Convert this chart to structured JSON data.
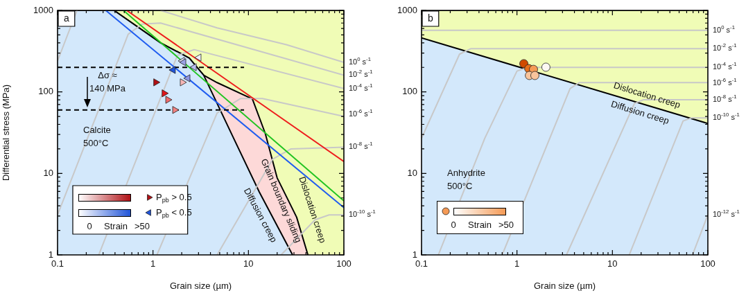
{
  "chart_data": [
    {
      "type": "line",
      "title": "a",
      "xlabel": "Grain size (µm)",
      "ylabel": "Differential stress (MPa)",
      "log": "xy",
      "xlim": [
        0.1,
        100
      ],
      "ylim": [
        1,
        1000
      ],
      "xticks": [
        0.1,
        {
          "value": 0.2,
          "label": null
        },
        {
          "value": 0.3,
          "label": null
        },
        {
          "value": 0.4,
          "label": null
        },
        {
          "value": 0.5,
          "label": null
        },
        {
          "value": 0.6,
          "label": null
        },
        {
          "value": 0.7,
          "label": null
        },
        {
          "value": 0.8,
          "label": null
        },
        {
          "value": 0.9,
          "label": null
        },
        1,
        {
          "value": 2,
          "label": null
        },
        {
          "value": 3,
          "label": null
        },
        {
          "value": 4,
          "label": null
        },
        {
          "value": 5,
          "label": null
        },
        {
          "value": 6,
          "label": null
        },
        {
          "value": 7,
          "label": null
        },
        {
          "value": 8,
          "label": null
        },
        {
          "value": 9,
          "label": null
        },
        10,
        {
          "value": 20,
          "label": null
        },
        {
          "value": 30,
          "label": null
        },
        {
          "value": 40,
          "label": null
        },
        {
          "value": 50,
          "label": null
        },
        {
          "value": 60,
          "label": null
        },
        {
          "value": 70,
          "label": null
        },
        {
          "value": 80,
          "label": null
        },
        {
          "value": 90,
          "label": null
        },
        100
      ],
      "yticks": [
        1,
        {
          "value": 2,
          "label": null
        },
        {
          "value": 3,
          "label": null
        },
        {
          "value": 4,
          "label": null
        },
        {
          "value": 5,
          "label": null
        },
        {
          "value": 6,
          "label": null
        },
        {
          "value": 7,
          "label": null
        },
        {
          "value": 8,
          "label": null
        },
        {
          "value": 9,
          "label": null
        },
        10,
        {
          "value": 20,
          "label": null
        },
        {
          "value": 30,
          "label": null
        },
        {
          "value": 40,
          "label": null
        },
        {
          "value": 50,
          "label": null
        },
        {
          "value": 60,
          "label": null
        },
        {
          "value": 70,
          "label": null
        },
        {
          "value": 80,
          "label": null
        },
        {
          "value": 90,
          "label": null
        },
        100,
        {
          "value": 200,
          "label": null
        },
        {
          "value": 300,
          "label": null
        },
        {
          "value": 400,
          "label": null
        },
        {
          "value": 500,
          "label": null
        },
        {
          "value": 600,
          "label": null
        },
        {
          "value": 700,
          "label": null
        },
        {
          "value": 800,
          "label": null
        },
        {
          "value": 900,
          "label": null
        },
        1000
      ],
      "legend": "bottom left",
      "annotations": [
        "Δσ ≈\n140 MPa",
        "Calcite\n500°C",
        "Diffusion creep",
        "Grain boundary sliding",
        "Dislocation creep",
        "0",
        "Strain",
        ">50",
        "10$^{0}$ s$^{-1}$",
        "10$^{-2}$ s$^{-1}$",
        "10$^{-4}$ s$^{-1}$",
        "10$^{-6}$ s$^{-1}$",
        "10$^{-8}$ s$^{-1}$",
        "10$^{-10}$ s$^{-1}$"
      ],
      "series": [
        {
          "type": "scatter",
          "name": "P$_{pb}$ > 0.5",
          "color": "#b01015",
          "marker": "triangle",
          "x": [
            1.07,
            1.31,
            1.43,
            2.03,
            1.69
          ],
          "values": [
            131,
            96,
            80,
            131,
            60
          ],
          "colors": [
            "#b01015",
            "#e01418",
            "#ee6a6a",
            "#f6b6b6",
            "#f08080"
          ]
        },
        {
          "type": "scatter",
          "name": "P$_{pb}$ < 0.5",
          "color": "#2054d8",
          "marker": "triangle",
          "x": [
            3.03,
            2.03,
            2.1,
            2.7,
            1.63,
            2.32
          ],
          "values": [
            264,
            240,
            231,
            201,
            186,
            147
          ],
          "colors": [
            "#eeeef9",
            "#dcdcf4",
            "#9aa2e6",
            "#b9bcee",
            "#2054d8",
            "#8f96e2"
          ]
        },
        {
          "type": "line",
          "color": "#000000",
          "line_style": "dashed",
          "x": [
            0.1,
            9
          ],
          "values": [
            200,
            200
          ]
        },
        {
          "type": "line",
          "color": "#000000",
          "line_style": "dashed",
          "x": [
            0.1,
            9
          ],
          "values": [
            60,
            60
          ]
        },
        {
          "type": "line",
          "color": "#ee1c1c",
          "x": [
            0.53,
            100
          ],
          "values": [
            1000,
            14
          ]
        },
        {
          "type": "line",
          "color": "#22c422",
          "x": [
            0.49,
            100
          ],
          "values": [
            1000,
            4.6
          ]
        },
        {
          "type": "line",
          "color": "#1f5cf0",
          "x": [
            0.32,
            100
          ],
          "values": [
            1000,
            3.8
          ]
        },
        {
          "type": "line",
          "color": "#c8c8c8",
          "x": [
            0.1,
            0.16
          ],
          "values": [
            240,
            1000
          ]
        },
        {
          "type": "line",
          "color": "#c8c8c8",
          "x": [
            1.2,
            4.7,
            25,
            100
          ],
          "values": [
            1000,
            610,
            380,
            230
          ]
        },
        {
          "type": "line",
          "color": "#c8c8c8",
          "x": [
            0.1,
            0.55,
            0.77,
            1.2,
            100
          ],
          "values": [
            3.1,
            510,
            680,
            700,
            160
          ]
        },
        {
          "type": "line",
          "color": "#c8c8c8",
          "x": [
            0.27,
            1.8,
            2.7,
            100
          ],
          "values": [
            1,
            280,
            330,
            110
          ]
        },
        {
          "type": "line",
          "color": "#c8c8c8",
          "x": [
            1.1,
            4.7,
            8.3,
            14,
            100
          ],
          "values": [
            1,
            55,
            83,
            83,
            50
          ]
        },
        {
          "type": "line",
          "color": "#c8c8c8",
          "x": [
            4.7,
            18,
            28,
            100
          ],
          "values": [
            1,
            15,
            20,
            21
          ]
        },
        {
          "type": "line",
          "color": "#c8c8c8",
          "x": [
            22,
            50,
            70,
            100
          ],
          "values": [
            1,
            2.7,
            3.1,
            3.1
          ]
        },
        {
          "type": "area",
          "color": "#d3e8fb",
          "x": [
            0.1,
            0.39,
            1.2,
            2.4,
            3.4,
            7,
            13,
            29
          ],
          "values": [
            1000,
            1000,
            400,
            260,
            160,
            27,
            5.9,
            1
          ]
        },
        {
          "type": "area",
          "color": "#fdd9d8",
          "x": [
            0.1,
            0.39,
            1.2,
            2.4,
            3.4,
            4.7,
            11,
            15,
            20,
            32,
            42
          ],
          "values": [
            1000,
            1000,
            400,
            260,
            160,
            130,
            82,
            31,
            8.8,
            2.9,
            1
          ]
        },
        {
          "type": "area",
          "color": "#f0fcb6",
          "x": [
            0.1,
            100
          ],
          "values": [
            1000,
            1000
          ]
        }
      ]
    },
    {
      "type": "line",
      "title": "b",
      "xlabel": "Grain size (µm)",
      "log": "xy",
      "xlim": [
        0.1,
        100
      ],
      "ylim": [
        1,
        1000
      ],
      "xticks": [
        0.1,
        {
          "value": 0.2,
          "label": null
        },
        {
          "value": 0.3,
          "label": null
        },
        {
          "value": 0.4,
          "label": null
        },
        {
          "value": 0.5,
          "label": null
        },
        {
          "value": 0.6,
          "label": null
        },
        {
          "value": 0.7,
          "label": null
        },
        {
          "value": 0.8,
          "label": null
        },
        {
          "value": 0.9,
          "label": null
        },
        1,
        {
          "value": 2,
          "label": null
        },
        {
          "value": 3,
          "label": null
        },
        {
          "value": 4,
          "label": null
        },
        {
          "value": 5,
          "label": null
        },
        {
          "value": 6,
          "label": null
        },
        {
          "value": 7,
          "label": null
        },
        {
          "value": 8,
          "label": null
        },
        {
          "value": 9,
          "label": null
        },
        10,
        {
          "value": 20,
          "label": null
        },
        {
          "value": 30,
          "label": null
        },
        {
          "value": 40,
          "label": null
        },
        {
          "value": 50,
          "label": null
        },
        {
          "value": 60,
          "label": null
        },
        {
          "value": 70,
          "label": null
        },
        {
          "value": 80,
          "label": null
        },
        {
          "value": 90,
          "label": null
        },
        100
      ],
      "yticks": [
        1,
        {
          "value": 2,
          "label": null
        },
        {
          "value": 3,
          "label": null
        },
        {
          "value": 4,
          "label": null
        },
        {
          "value": 5,
          "label": null
        },
        {
          "value": 6,
          "label": null
        },
        {
          "value": 7,
          "label": null
        },
        {
          "value": 8,
          "label": null
        },
        {
          "value": 9,
          "label": null
        },
        10,
        {
          "value": 20,
          "label": null
        },
        {
          "value": 30,
          "label": null
        },
        {
          "value": 40,
          "label": null
        },
        {
          "value": 50,
          "label": null
        },
        {
          "value": 60,
          "label": null
        },
        {
          "value": 70,
          "label": null
        },
        {
          "value": 80,
          "label": null
        },
        {
          "value": 90,
          "label": null
        },
        100,
        {
          "value": 200,
          "label": null
        },
        {
          "value": 300,
          "label": null
        },
        {
          "value": 400,
          "label": null
        },
        {
          "value": 500,
          "label": null
        },
        {
          "value": 600,
          "label": null
        },
        {
          "value": 700,
          "label": null
        },
        {
          "value": 800,
          "label": null
        },
        {
          "value": 900,
          "label": null
        },
        1000
      ],
      "annotations": [
        "Anhydrite\n500°C",
        "Dislocation creep",
        "Diffusion creep",
        "0",
        "Strain",
        ">50",
        "10$^{0}$ s$^{-1}$",
        "10$^{-2}$ s$^{-1}$",
        "10$^{-4}$ s$^{-1}$",
        "10$^{-6}$ s$^{-1}$",
        "10$^{-8}$ s$^{-1}$",
        "10$^{-10}$ s$^{-1}$",
        "10$^{-12}$ s$^{-1}$"
      ],
      "series": [
        {
          "type": "scatter",
          "color": "#f59a55",
          "marker": "circle",
          "x": [
            1.18,
            1.33,
            1.49,
            1.35,
            1.54,
            2.01
          ],
          "values": [
            222,
            193,
            189,
            159,
            159,
            201
          ],
          "colors": [
            "#d04a00",
            "#e8701c",
            "#f59a55",
            "#f8c49c",
            "#f8c49c",
            "#fdf8f3"
          ]
        },
        {
          "type": "line",
          "color": "#c8c8c8",
          "x": [
            0.1,
            100
          ],
          "values": [
            570,
            570
          ]
        },
        {
          "type": "line",
          "color": "#c8c8c8",
          "x": [
            0.1,
            0.25,
            0.33,
            100
          ],
          "values": [
            27,
            290,
            340,
            340
          ]
        },
        {
          "type": "line",
          "color": "#c8c8c8",
          "x": [
            0.15,
            0.46,
            1.0,
            1.3,
            100
          ],
          "values": [
            1,
            27,
            180,
            200,
            200
          ]
        },
        {
          "type": "line",
          "color": "#c8c8c8",
          "x": [
            0.7,
            3.6,
            4.5,
            100
          ],
          "values": [
            1,
            110,
            130,
            130
          ]
        },
        {
          "type": "line",
          "color": "#c8c8c8",
          "x": [
            3.3,
            17,
            21,
            100
          ],
          "values": [
            1,
            72,
            80,
            80
          ]
        },
        {
          "type": "line",
          "color": "#c8c8c8",
          "x": [
            15,
            55,
            68,
            100
          ],
          "values": [
            1,
            44,
            48,
            48
          ]
        },
        {
          "type": "line",
          "color": "#c8c8c8",
          "x": [
            69,
            100
          ],
          "values": [
            1,
            3.1
          ]
        },
        {
          "type": "area",
          "color": "#d3e8fb",
          "x": [
            0.1,
            100
          ],
          "values": [
            460,
            41
          ]
        },
        {
          "type": "area",
          "color": "#f0fcb6",
          "x": [
            0.1,
            100
          ],
          "values": [
            1000,
            1000
          ]
        }
      ]
    }
  ]
}
